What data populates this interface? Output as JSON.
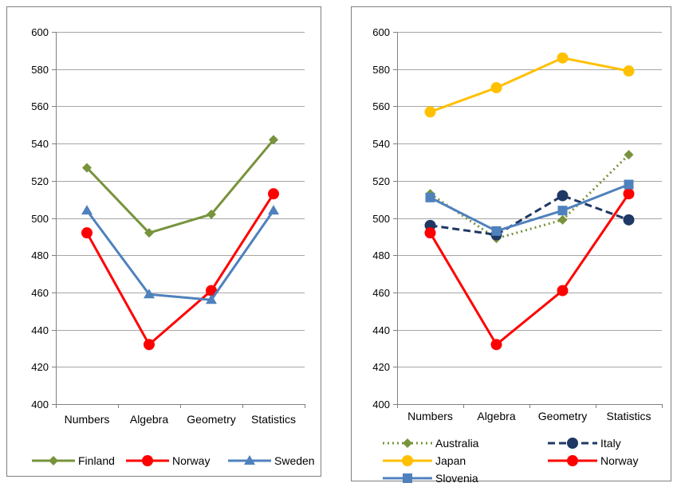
{
  "colors": {
    "finland": "#77933C",
    "norway": "#FF0000",
    "sweden": "#4F81BD",
    "australia": "#77933C",
    "italy": "#1F3864",
    "japan": "#FFC000",
    "slovenia": "#4F81BD",
    "grid": "#A6A6A6",
    "axis": "#808080",
    "frame": "#7F7F7F"
  },
  "chart_data": [
    {
      "type": "line",
      "categories": [
        "Numbers",
        "Algebra",
        "Geometry",
        "Statistics"
      ],
      "ylim": [
        400,
        600
      ],
      "y_ticks": [
        "400",
        "420",
        "440",
        "460",
        "480",
        "500",
        "520",
        "540",
        "560",
        "580",
        "600"
      ],
      "grid": true,
      "legend_position": "bottom",
      "series": [
        {
          "name": "Finland",
          "values": [
            527,
            492,
            502,
            542
          ],
          "color": "#77933C",
          "marker": "diamond",
          "dash": "solid"
        },
        {
          "name": "Norway",
          "values": [
            492,
            432,
            461,
            513
          ],
          "color": "#FF0000",
          "marker": "circle",
          "dash": "solid"
        },
        {
          "name": "Sweden",
          "values": [
            504,
            459,
            456,
            504
          ],
          "color": "#4F81BD",
          "marker": "triangle",
          "dash": "solid"
        }
      ]
    },
    {
      "type": "line",
      "categories": [
        "Numbers",
        "Algebra",
        "Geometry",
        "Statistics"
      ],
      "ylim": [
        400,
        600
      ],
      "y_ticks": [
        "400",
        "420",
        "440",
        "460",
        "480",
        "500",
        "520",
        "540",
        "560",
        "580",
        "600"
      ],
      "grid": true,
      "legend_position": "bottom",
      "series": [
        {
          "name": "Australia",
          "values": [
            513,
            489,
            499,
            534
          ],
          "color": "#77933C",
          "marker": "diamond",
          "dash": "dotted"
        },
        {
          "name": "Italy",
          "values": [
            496,
            491,
            512,
            499
          ],
          "color": "#1F3864",
          "marker": "circle",
          "dash": "dashed"
        },
        {
          "name": "Japan",
          "values": [
            557,
            570,
            586,
            579
          ],
          "color": "#FFC000",
          "marker": "circle",
          "dash": "solid"
        },
        {
          "name": "Norway",
          "values": [
            492,
            432,
            461,
            513
          ],
          "color": "#FF0000",
          "marker": "circle",
          "dash": "solid"
        },
        {
          "name": "Slovenia",
          "values": [
            511,
            493,
            504,
            518
          ],
          "color": "#4F81BD",
          "marker": "square",
          "dash": "solid"
        }
      ]
    }
  ]
}
